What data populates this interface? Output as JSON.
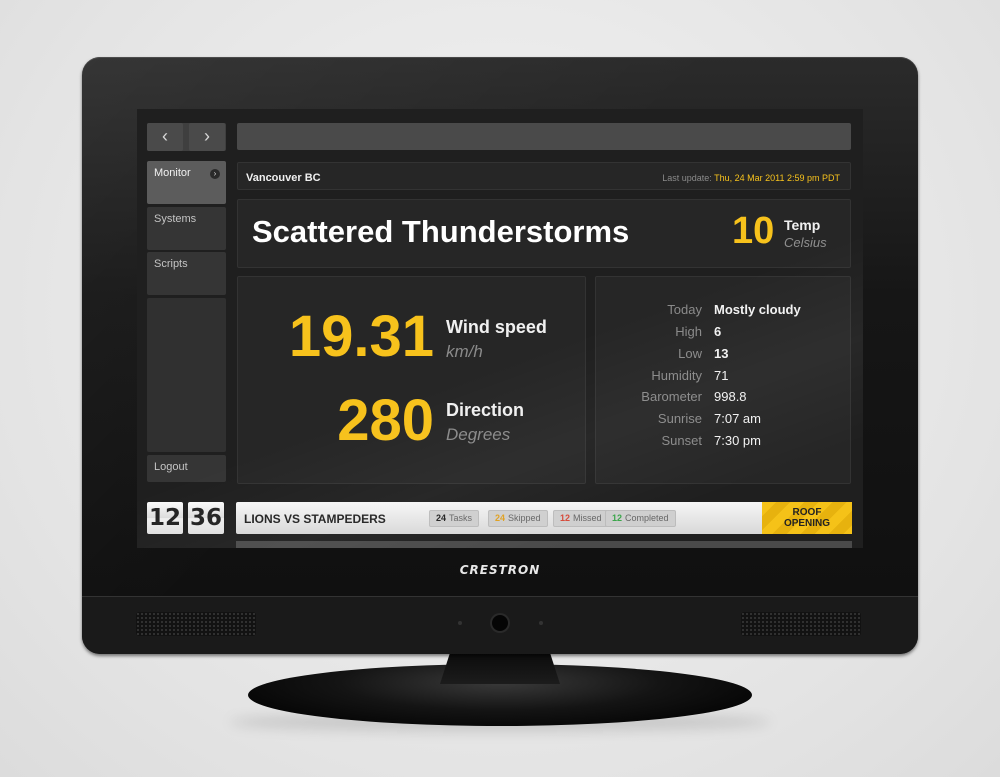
{
  "device": {
    "brand": "CRESTRON"
  },
  "nav": {
    "back_icon": "‹",
    "forward_icon": "›"
  },
  "sidebar": {
    "items": [
      {
        "label": "Monitor",
        "active": true
      },
      {
        "label": "Systems"
      },
      {
        "label": "Scripts"
      },
      {
        "label": "Logout"
      }
    ],
    "chevron": "›"
  },
  "header": {
    "location": "Vancouver BC",
    "last_update_label": "Last update:",
    "last_update_value": "Thu, 24 Mar 2011 2:59 pm PDT"
  },
  "weather": {
    "condition": "Scattered Thunderstorms",
    "temp_value": "10",
    "temp_label": "Temp",
    "temp_unit": "Celsius",
    "wind_value": "19.31",
    "wind_label": "Wind speed",
    "wind_unit": "km/h",
    "direction_value": "280",
    "direction_label": "Direction",
    "direction_unit": "Degrees"
  },
  "details": [
    {
      "key": "Today",
      "value": "Mostly cloudy",
      "bold": true
    },
    {
      "key": "High",
      "value": "6",
      "bold": true
    },
    {
      "key": "Low",
      "value": "13",
      "bold": true
    },
    {
      "key": "Humidity",
      "value": "71"
    },
    {
      "key": "Barometer",
      "value": "998.8"
    },
    {
      "key": "Sunrise",
      "value": "7:07 am"
    },
    {
      "key": "Sunset",
      "value": "7:30 pm"
    }
  ],
  "clock": {
    "hours": "12",
    "minutes": "36"
  },
  "ticker": {
    "title": "LIONS VS STAMPEDERS",
    "stats": [
      {
        "count": "24",
        "label": "Tasks",
        "color": "#222222"
      },
      {
        "count": "24",
        "label": "Skipped",
        "color": "#e0a020"
      },
      {
        "count": "12",
        "label": "Missed",
        "color": "#d64a3a"
      },
      {
        "count": "12",
        "label": "Completed",
        "color": "#3aa64a"
      }
    ],
    "action_line1": "ROOF",
    "action_line2": "OPENING"
  },
  "colors": {
    "accent": "#f7c21c",
    "screen_bg": "#1f1f1f",
    "panel_bg": "#262626"
  }
}
